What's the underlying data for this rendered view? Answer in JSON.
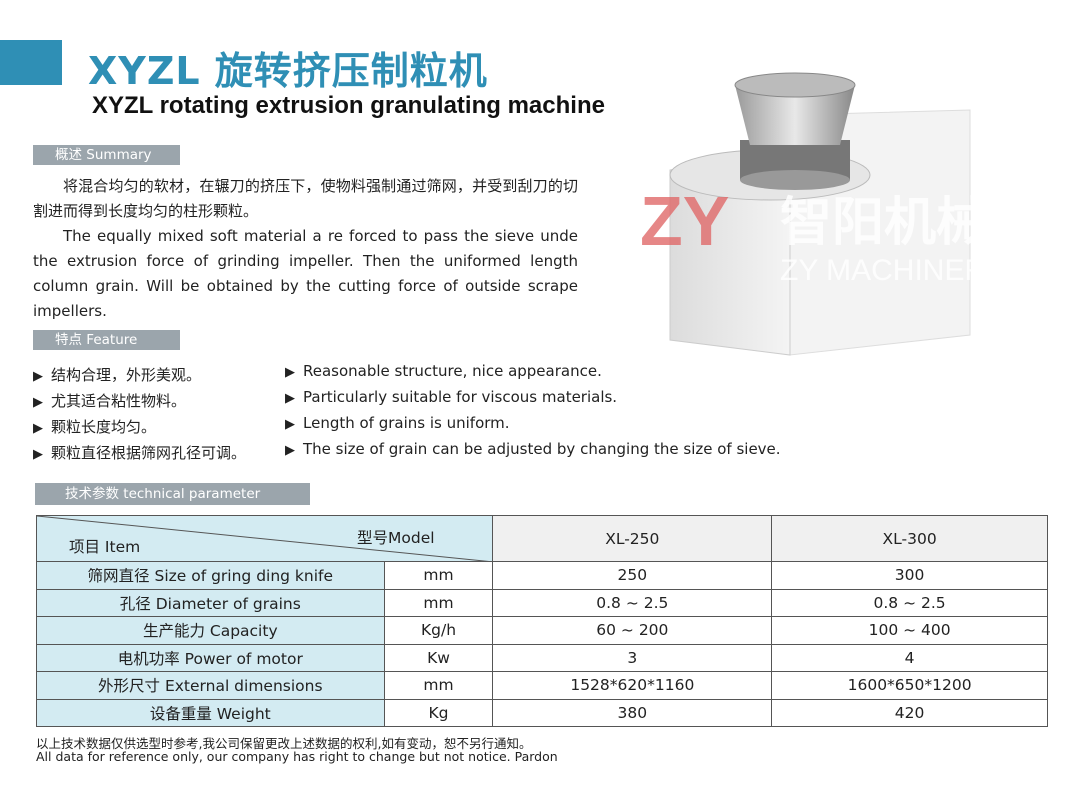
{
  "header": {
    "title": "XYZL 旋转挤压制粒机",
    "subtitle": "XYZL rotating extrusion granulating machine",
    "accent_color": "#2f8fb5"
  },
  "summary": {
    "label": "概述 Summary",
    "zh": "将混合均匀的软材，在辗刀的挤压下，使物料强制通过筛网，并受到刮刀的切割进而得到长度均匀的柱形颗粒。",
    "en": "The equally mixed soft material a re forced to pass the sieve unde the extrusion force of grinding impeller. Then the uniformed length column grain. Will be obtained by the cutting force of outside scrape impellers."
  },
  "feature": {
    "label": "特点 Feature",
    "zh": [
      "结构合理，外形美观。",
      "尤其适合粘性物料。",
      "颗粒长度均匀。",
      "颗粒直径根据筛网孔径可调。"
    ],
    "en": [
      "Reasonable structure, nice appearance.",
      "Particularly suitable for viscous materials.",
      "Length of grains is uniform.",
      "The size of grain can be adjusted by changing the size of sieve."
    ]
  },
  "image": {
    "watermark_zh": "智阳机械",
    "watermark_en": "ZY MACHINERY",
    "logo": "ZY"
  },
  "params": {
    "label": "技术参数  technical parameter",
    "item_header": "项目 Item",
    "model_header": "型号Model",
    "models": [
      "XL-250",
      "XL-300"
    ],
    "rows": [
      {
        "item": "筛网直径 Size of gring ding knife",
        "unit": "mm",
        "values": [
          "250",
          "300"
        ]
      },
      {
        "item": "孔径 Diameter of grains",
        "unit": "mm",
        "values": [
          "0.8 ~ 2.5",
          "0.8 ~ 2.5"
        ]
      },
      {
        "item": "生产能力 Capacity",
        "unit": "Kg/h",
        "values": [
          "60 ~ 200",
          "100 ~ 400"
        ]
      },
      {
        "item": "电机功率 Power of motor",
        "unit": "Kw",
        "values": [
          "3",
          "4"
        ]
      },
      {
        "item": "外形尺寸 External dimensions",
        "unit": "mm",
        "values": [
          "1528*620*1160",
          "1600*650*1200"
        ]
      },
      {
        "item": "设备重量 Weight",
        "unit": "Kg",
        "values": [
          "380",
          "420"
        ]
      }
    ]
  },
  "footer": {
    "zh": "以上技术数据仅供选型时参考,我公司保留更改上述数据的权利,如有变动，恕不另行通知。",
    "en": "All data for reference only, our company has right to change but not notice. Pardon"
  }
}
